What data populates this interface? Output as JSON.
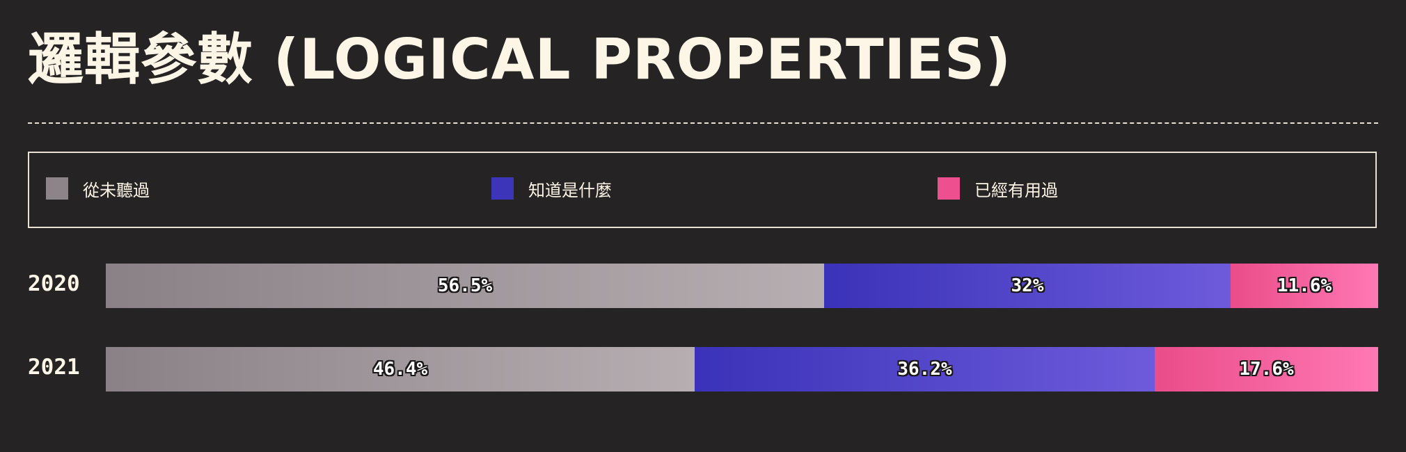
{
  "title": "邏輯參數 (LOGICAL PROPERTIES)",
  "legend": [
    {
      "label": "從未聽過",
      "color": "#8c8488"
    },
    {
      "label": "知道是什麼",
      "color": "#3c34b9"
    },
    {
      "label": "已經有用過",
      "color": "#ee4f8e"
    }
  ],
  "chart_data": {
    "type": "bar",
    "orientation": "horizontal",
    "stacked": true,
    "normalized_percent": true,
    "title": "邏輯參數 (LOGICAL PROPERTIES)",
    "categories": [
      "2020",
      "2021"
    ],
    "series": [
      {
        "name": "從未聽過",
        "values": [
          56.5,
          46.4
        ],
        "labels": [
          "56.5%",
          "46.4%"
        ],
        "color_start": "#8a8186",
        "color_end": "#b6aeb1"
      },
      {
        "name": "知道是什麼",
        "values": [
          32,
          36.2
        ],
        "labels": [
          "32%",
          "36.2%"
        ],
        "color_start": "#3a32b8",
        "color_end": "#6d5bdb"
      },
      {
        "name": "已經有用過",
        "values": [
          11.6,
          17.6
        ],
        "labels": [
          "11.6%",
          "17.6%"
        ],
        "color_start": "#ea4d89",
        "color_end": "#ff78b4"
      }
    ],
    "xlim": [
      0,
      100
    ],
    "legend_position": "top",
    "grid": false
  }
}
